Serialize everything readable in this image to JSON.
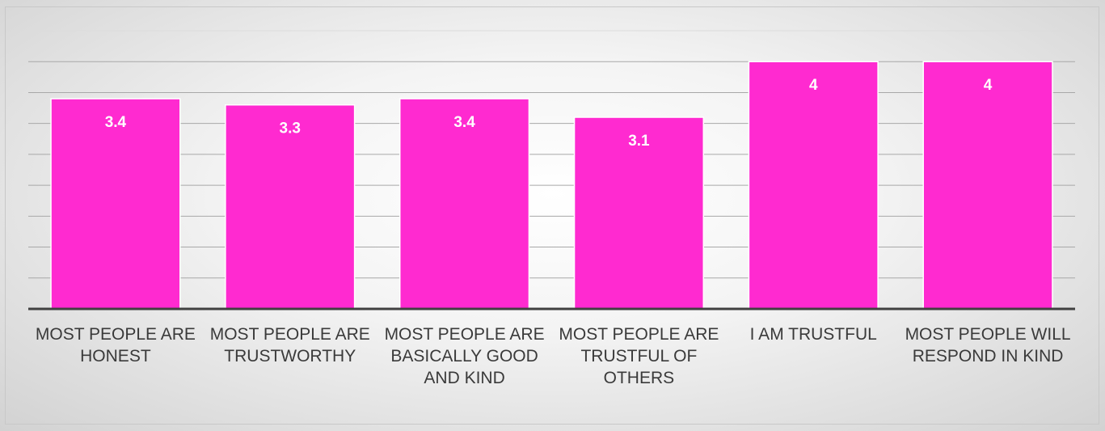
{
  "chart_data": {
    "type": "bar",
    "categories": [
      "MOST PEOPLE ARE HONEST",
      "MOST PEOPLE ARE TRUSTWORTHY",
      "MOST PEOPLE ARE BASICALLY GOOD AND KIND",
      "MOST PEOPLE ARE TRUSTFUL OF OTHERS",
      "I AM TRUSTFUL",
      "MOST PEOPLE WILL RESPOND IN KIND"
    ],
    "values": [
      3.4,
      3.3,
      3.4,
      3.1,
      4,
      4
    ],
    "color": "#ff2ad0",
    "ylim": [
      0,
      4.5
    ],
    "yticks": [
      0,
      0.5,
      1,
      1.5,
      2,
      2.5,
      3,
      3.5,
      4,
      4.5
    ],
    "grid": true
  }
}
